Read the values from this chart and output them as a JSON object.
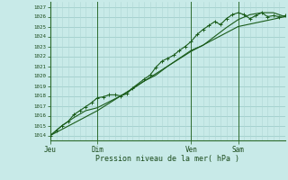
{
  "xlabel": "Pression niveau de la mer( hPa )",
  "bg_color": "#c8eae8",
  "grid_color_minor": "#b0d8d5",
  "grid_color_major": "#98c8c5",
  "line_color": "#1a5c1a",
  "axis_color": "#2d6b2d",
  "text_color": "#1a4a1a",
  "ylim": [
    1013.5,
    1027.5
  ],
  "yticks": [
    1014,
    1015,
    1016,
    1017,
    1018,
    1019,
    1020,
    1021,
    1022,
    1023,
    1024,
    1025,
    1026,
    1027
  ],
  "xtick_labels": [
    "Jeu",
    "Dim",
    "Ven",
    "Sam"
  ],
  "xtick_positions": [
    0,
    24,
    72,
    96
  ],
  "day_lines": [
    0,
    24,
    72,
    96
  ],
  "xlim": [
    0,
    120
  ],
  "line1_x": [
    0,
    3,
    6,
    9,
    12,
    15,
    18,
    21,
    24,
    27,
    30,
    33,
    36,
    39,
    42,
    48,
    51,
    54,
    57,
    60,
    63,
    66,
    69,
    72,
    75,
    78,
    81,
    84,
    87,
    90,
    93,
    96,
    99,
    102,
    105,
    108,
    111,
    114,
    117,
    120
  ],
  "line1_y": [
    1014.0,
    1014.5,
    1015.0,
    1015.4,
    1016.1,
    1016.5,
    1016.9,
    1017.3,
    1017.8,
    1017.9,
    1018.1,
    1018.1,
    1018.0,
    1018.2,
    1018.8,
    1019.7,
    1020.1,
    1020.9,
    1021.5,
    1021.8,
    1022.1,
    1022.6,
    1023.0,
    1023.5,
    1024.2,
    1024.7,
    1025.1,
    1025.5,
    1025.2,
    1025.8,
    1026.2,
    1026.4,
    1026.2,
    1025.8,
    1026.1,
    1026.4,
    1026.0,
    1026.1,
    1026.0,
    1026.1
  ],
  "line2_x": [
    0,
    6,
    12,
    18,
    24,
    30,
    36,
    42,
    48,
    54,
    60,
    66,
    72,
    78,
    84,
    90,
    96,
    102,
    108,
    114,
    120
  ],
  "line2_y": [
    1014.0,
    1015.0,
    1015.8,
    1016.5,
    1016.8,
    1017.4,
    1018.0,
    1018.7,
    1019.5,
    1020.1,
    1021.0,
    1021.8,
    1022.6,
    1023.1,
    1024.0,
    1024.9,
    1025.7,
    1026.2,
    1026.4,
    1026.4,
    1026.0
  ],
  "line3_x": [
    0,
    24,
    48,
    72,
    96,
    120
  ],
  "line3_y": [
    1014.0,
    1016.5,
    1019.5,
    1022.5,
    1025.0,
    1026.0
  ]
}
